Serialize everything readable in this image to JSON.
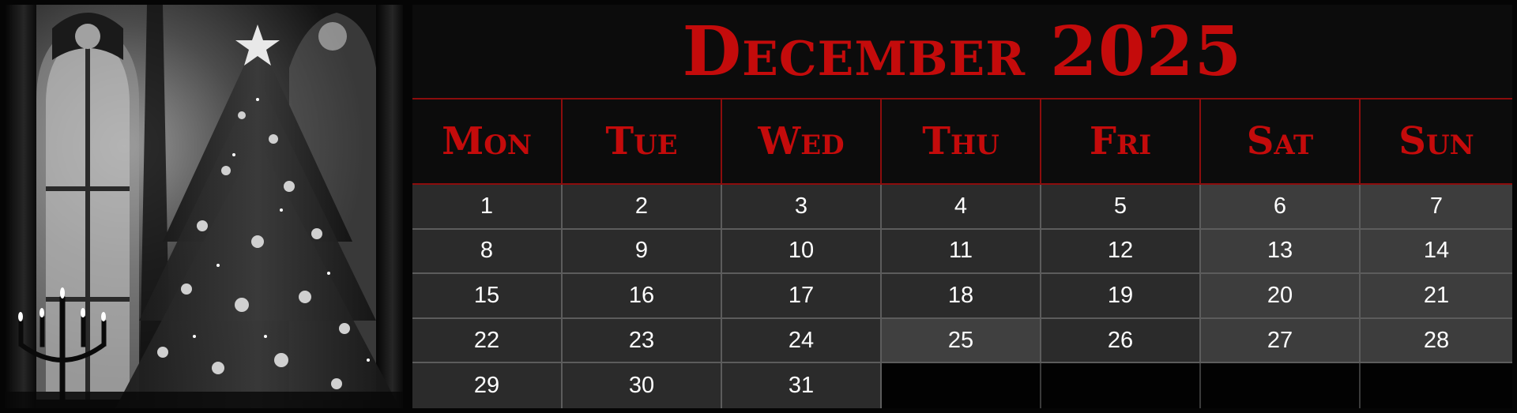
{
  "calendar": {
    "title": "December 2025",
    "weekdays": [
      "Mon",
      "Tue",
      "Wed",
      "Thu",
      "Fri",
      "Sat",
      "Sun"
    ],
    "weeks": [
      [
        "1",
        "2",
        "3",
        "4",
        "5",
        "6",
        "7"
      ],
      [
        "8",
        "9",
        "10",
        "11",
        "12",
        "13",
        "14"
      ],
      [
        "15",
        "16",
        "17",
        "18",
        "19",
        "20",
        "21"
      ],
      [
        "22",
        "23",
        "24",
        "25",
        "26",
        "27",
        "28"
      ],
      [
        "29",
        "30",
        "31",
        "",
        "",
        "",
        ""
      ]
    ],
    "highlighted_day": "25"
  },
  "colors": {
    "title_red": "#c40b0b",
    "weekday_cell": "#2b2b2b",
    "weekend_cell": "#3d3d3d",
    "empty_cell": "#020202",
    "grid_line": "#5c5c5c"
  },
  "image": {
    "subject_icons": [
      "christmas-tree-icon",
      "gothic-window-icon",
      "candelabra-icon",
      "star-topper-icon"
    ]
  }
}
